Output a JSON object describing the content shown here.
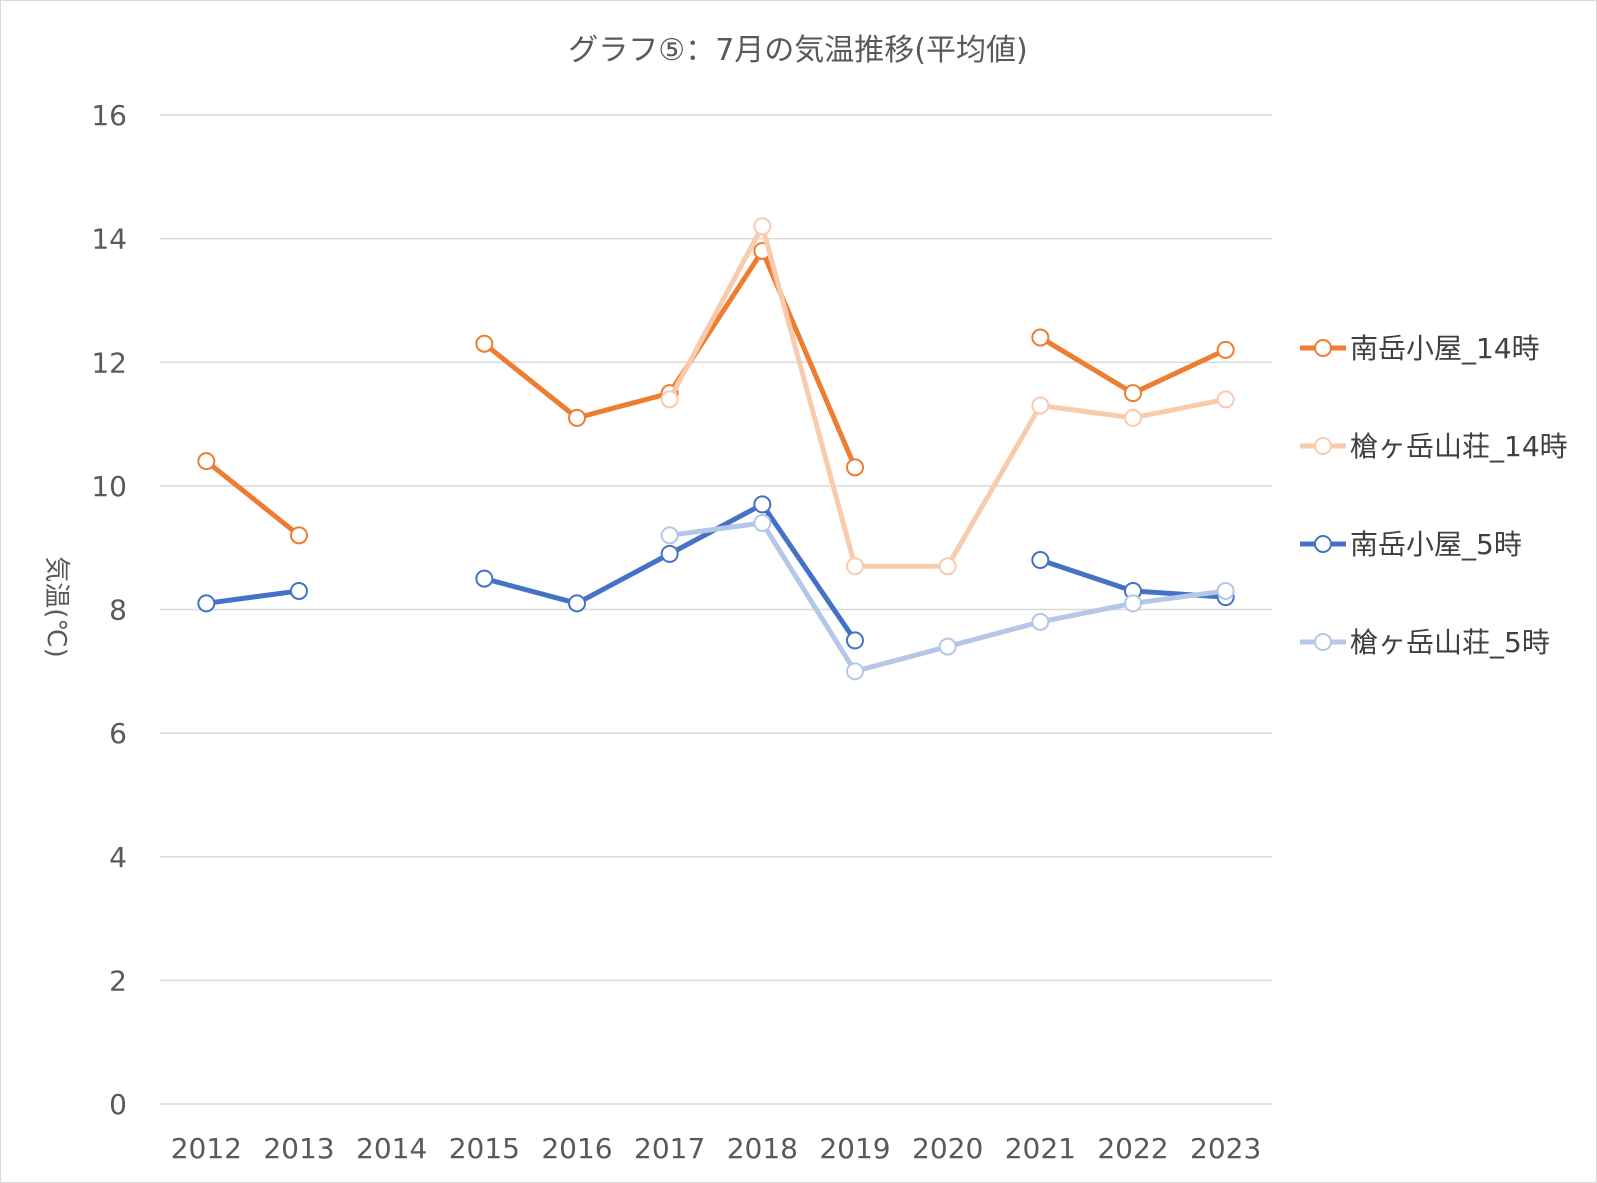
{
  "chart_data": {
    "type": "line",
    "title": "グラフ⑤：7月の気温推移(平均値)",
    "ylabel": "気温(℃)",
    "xlabel": "",
    "ylim": [
      0,
      16
    ],
    "yticks": [
      0,
      2,
      4,
      6,
      8,
      10,
      12,
      14,
      16
    ],
    "categories": [
      "2012",
      "2013",
      "2014",
      "2015",
      "2016",
      "2017",
      "2018",
      "2019",
      "2020",
      "2021",
      "2022",
      "2023"
    ],
    "grid": true,
    "legend_position": "right",
    "series": [
      {
        "name": "南岳小屋_14時",
        "color": "#ED7D31",
        "values": [
          10.4,
          9.2,
          null,
          12.3,
          11.1,
          11.5,
          13.8,
          10.3,
          null,
          12.4,
          11.5,
          12.2
        ]
      },
      {
        "name": "槍ヶ岳山荘_14時",
        "color": "#F8CBAD",
        "values": [
          null,
          null,
          null,
          null,
          null,
          11.4,
          14.2,
          8.7,
          8.7,
          11.3,
          11.1,
          11.4
        ]
      },
      {
        "name": "南岳小屋_5時",
        "color": "#4472C4",
        "values": [
          8.1,
          8.3,
          null,
          8.5,
          8.1,
          8.9,
          9.7,
          7.5,
          null,
          8.8,
          8.3,
          8.2
        ]
      },
      {
        "name": "槍ヶ岳山荘_5時",
        "color": "#B4C7E7",
        "values": [
          null,
          null,
          null,
          null,
          null,
          9.2,
          9.4,
          7.0,
          7.4,
          7.8,
          8.1,
          8.3
        ]
      }
    ]
  }
}
